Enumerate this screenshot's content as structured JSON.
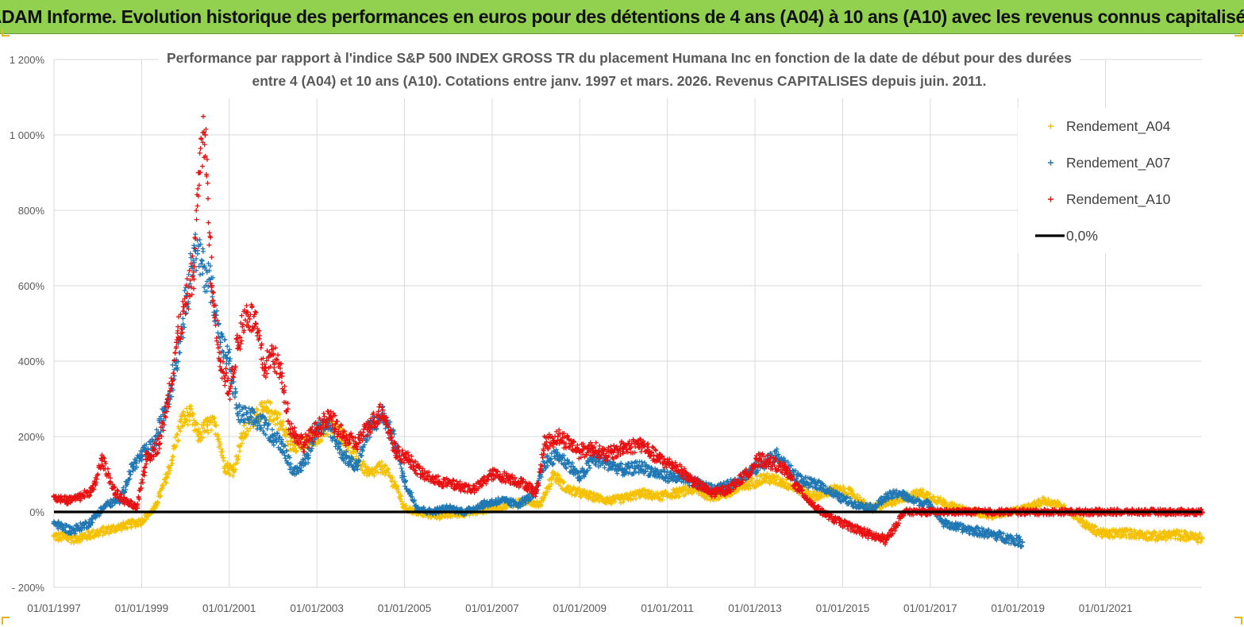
{
  "banner_title": "ADAM Informe. Evolution historique des performances en euros pour des détentions de 4 ans (A04) à 10 ans (A10) avec les revenus connus capitalisés",
  "chart_data": {
    "type": "scatter",
    "title_line1": "Performance par rapport à l'indice S&P 500 INDEX GROSS TR  du placement Humana Inc en fonction de la date de début pour des durées",
    "title_line2": "entre 4 (A04) et 10 ans (A10). Cotations entre janv. 1997 et mars. 2026. Revenus CAPITALISES depuis juin. 2011.",
    "xlabel": "",
    "ylabel": "",
    "x_range": [
      1997.0,
      2023.2
    ],
    "ylim": [
      -200,
      1200
    ],
    "y_ticks": [
      -200,
      0,
      200,
      400,
      600,
      800,
      1000,
      1200
    ],
    "y_tick_labels": [
      "- 200%",
      "0%",
      "200%",
      "400%",
      "600%",
      "800%",
      "1 000%",
      "1 200%"
    ],
    "x_ticks": [
      1997,
      1999,
      2001,
      2003,
      2005,
      2007,
      2009,
      2011,
      2013,
      2015,
      2017,
      2019,
      2021
    ],
    "x_tick_labels": [
      "01/01/1997",
      "01/01/1999",
      "01/01/2001",
      "01/01/2003",
      "01/01/2005",
      "01/01/2007",
      "01/01/2009",
      "01/01/2011",
      "01/01/2013",
      "01/01/2015",
      "01/01/2017",
      "01/01/2019",
      "01/01/2021"
    ],
    "grid": "vertical and horizontal",
    "legend_position": "top-right",
    "series": [
      {
        "name": "Rendement_A04",
        "color": "#f5c000",
        "x": [
          1997.0,
          1997.5,
          1998.0,
          1998.5,
          1999.0,
          1999.3,
          1999.6,
          1999.9,
          2000.1,
          2000.3,
          2000.5,
          2000.7,
          2000.9,
          2001.1,
          2001.3,
          2001.6,
          2001.9,
          2002.1,
          2002.4,
          2002.7,
          2003.0,
          2003.3,
          2003.6,
          2003.9,
          2004.2,
          2004.5,
          2004.8,
          2005.0,
          2005.4,
          2005.8,
          2006.2,
          2006.6,
          2007.0,
          2007.4,
          2007.8,
          2008.1,
          2008.4,
          2008.7,
          2009.0,
          2009.3,
          2009.7,
          2010.0,
          2010.4,
          2010.8,
          2011.2,
          2011.6,
          2012.0,
          2012.4,
          2012.8,
          2013.2,
          2013.6,
          2014.0,
          2014.4,
          2014.8,
          2015.2,
          2015.6,
          2016.0,
          2016.4,
          2016.8,
          2017.2,
          2017.6,
          2018.0,
          2018.4,
          2018.8,
          2019.2,
          2019.6,
          2019.9,
          2020.2,
          2020.6,
          2021.0,
          2021.4,
          2021.8,
          2022.2,
          2022.6,
          2023.2
        ],
        "values": [
          -65,
          -70,
          -55,
          -40,
          -25,
          10,
          100,
          240,
          260,
          200,
          230,
          230,
          120,
          110,
          200,
          260,
          270,
          250,
          180,
          180,
          200,
          230,
          200,
          140,
          100,
          120,
          70,
          10,
          -5,
          -10,
          -5,
          0,
          10,
          20,
          30,
          20,
          100,
          60,
          50,
          40,
          30,
          35,
          50,
          40,
          50,
          60,
          40,
          50,
          70,
          90,
          80,
          60,
          40,
          60,
          50,
          10,
          20,
          40,
          50,
          30,
          10,
          0,
          -10,
          0,
          10,
          30,
          20,
          0,
          -40,
          -60,
          -55,
          -60,
          -65,
          -60,
          -70
        ]
      },
      {
        "name": "Rendement_A07",
        "color": "#1f77b4",
        "x": [
          1997.0,
          1997.4,
          1997.8,
          1998.2,
          1998.5,
          1998.8,
          1999.0,
          1999.3,
          1999.6,
          1999.8,
          2000.0,
          2000.2,
          2000.4,
          2000.6,
          2000.8,
          2001.0,
          2001.2,
          2001.5,
          2001.8,
          2002.0,
          2002.2,
          2002.5,
          2002.8,
          2003.0,
          2003.3,
          2003.6,
          2003.9,
          2004.2,
          2004.5,
          2004.8,
          2005.0,
          2005.3,
          2005.6,
          2006.0,
          2006.4,
          2006.8,
          2007.2,
          2007.6,
          2008.0,
          2008.2,
          2008.5,
          2008.8,
          2009.0,
          2009.3,
          2009.6,
          2010.0,
          2010.4,
          2010.8,
          2011.2,
          2011.6,
          2012.0,
          2012.4,
          2012.8,
          2013.2,
          2013.5,
          2013.8,
          2014.1,
          2014.5,
          2014.9,
          2015.3,
          2015.7,
          2016.0,
          2016.3,
          2016.6,
          2017.0,
          2017.3,
          2017.6,
          2018.0,
          2018.4,
          2018.8,
          2019.1
        ],
        "values": [
          -30,
          -50,
          -30,
          20,
          30,
          120,
          150,
          180,
          300,
          400,
          550,
          700,
          650,
          600,
          450,
          400,
          260,
          250,
          230,
          200,
          180,
          100,
          150,
          230,
          220,
          150,
          120,
          220,
          260,
          180,
          80,
          10,
          0,
          10,
          0,
          20,
          30,
          20,
          50,
          130,
          150,
          120,
          90,
          140,
          130,
          110,
          120,
          100,
          90,
          80,
          60,
          70,
          100,
          130,
          150,
          110,
          80,
          70,
          40,
          20,
          10,
          40,
          50,
          30,
          20,
          -30,
          -40,
          -50,
          -60,
          -70,
          -80
        ]
      },
      {
        "name": "Rendement_A10",
        "color": "#e81010",
        "x": [
          1997.0,
          1997.3,
          1997.6,
          1997.9,
          1998.1,
          1998.4,
          1998.6,
          1998.9,
          1999.1,
          1999.4,
          1999.6,
          1999.8,
          2000.0,
          2000.2,
          2000.3,
          2000.45,
          2000.6,
          2000.8,
          2001.0,
          2001.2,
          2001.4,
          2001.6,
          2001.8,
          2002.0,
          2002.2,
          2002.4,
          2002.7,
          2003.0,
          2003.3,
          2003.6,
          2003.9,
          2004.2,
          2004.5,
          2004.8,
          2005.1,
          2005.4,
          2005.8,
          2006.2,
          2006.6,
          2007.0,
          2007.4,
          2007.8,
          2008.0,
          2008.2,
          2008.5,
          2008.8,
          2009.0,
          2009.3,
          2009.6,
          2010.0,
          2010.4,
          2010.8,
          2011.2,
          2011.6,
          2012.0,
          2012.4,
          2012.8,
          2013.1,
          2013.4,
          2013.7,
          2014.0,
          2014.4,
          2014.8,
          2015.2,
          2015.6,
          2016.0,
          2016.4,
          2016.8,
          2017.2,
          2017.6,
          2018.0,
          2018.4,
          2018.8,
          2019.2,
          2019.6,
          2020.0,
          2020.4,
          2020.8,
          2021.2,
          2021.6,
          2022.0,
          2022.4,
          2022.8,
          2023.2
        ],
        "values": [
          40,
          30,
          40,
          60,
          140,
          50,
          30,
          10,
          140,
          180,
          300,
          450,
          550,
          650,
          900,
          1000,
          600,
          400,
          320,
          450,
          530,
          500,
          380,
          420,
          360,
          220,
          180,
          220,
          250,
          200,
          180,
          230,
          270,
          160,
          140,
          100,
          80,
          70,
          60,
          100,
          90,
          70,
          50,
          180,
          200,
          180,
          160,
          170,
          150,
          170,
          180,
          140,
          120,
          80,
          50,
          60,
          100,
          140,
          130,
          110,
          60,
          10,
          -20,
          -40,
          -60,
          -75,
          0,
          0,
          0,
          0,
          0,
          0,
          0,
          0,
          0,
          0,
          0,
          0,
          0,
          0,
          0,
          0,
          0,
          0
        ]
      },
      {
        "name": "0,0%",
        "color": "#000000",
        "x": [
          1997.0,
          2023.2
        ],
        "values": [
          0,
          0
        ]
      }
    ]
  }
}
